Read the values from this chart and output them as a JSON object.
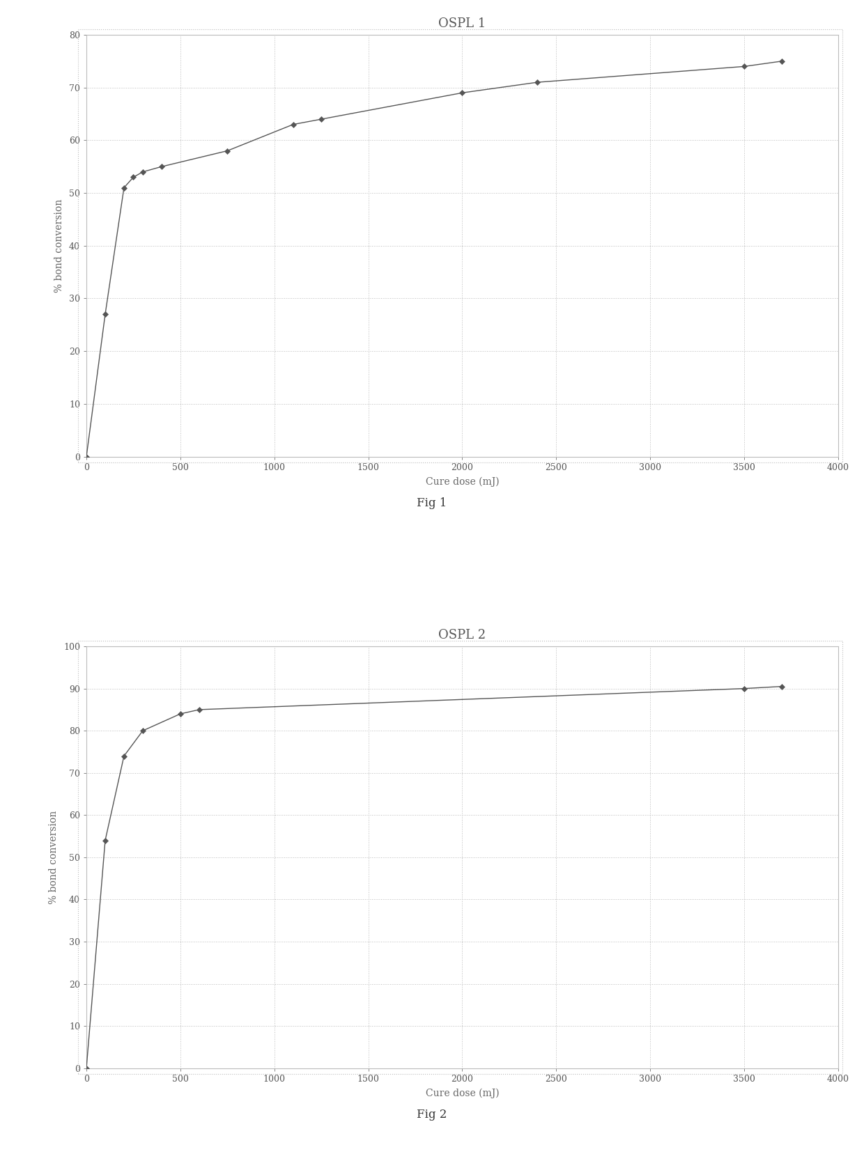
{
  "fig1": {
    "title": "OSPL 1",
    "xlabel": "Cure dose (mJ)",
    "ylabel": "% bond conversion",
    "xlim": [
      0,
      4000
    ],
    "ylim": [
      0,
      80
    ],
    "yticks": [
      0,
      10,
      20,
      30,
      40,
      50,
      60,
      70,
      80
    ],
    "xticks": [
      0,
      500,
      1000,
      1500,
      2000,
      2500,
      3000,
      3500,
      4000
    ],
    "x": [
      0,
      100,
      200,
      250,
      300,
      400,
      750,
      1100,
      1250,
      2000,
      2400,
      3500,
      3700
    ],
    "y": [
      0,
      27,
      51,
      53,
      54,
      55,
      58,
      63,
      64,
      69,
      71,
      74,
      75
    ]
  },
  "fig2": {
    "title": "OSPL 2",
    "xlabel": "Cure dose (mJ)",
    "ylabel": "% bond conversion",
    "xlim": [
      0,
      4000
    ],
    "ylim": [
      0,
      100
    ],
    "yticks": [
      0,
      10,
      20,
      30,
      40,
      50,
      60,
      70,
      80,
      90,
      100
    ],
    "xticks": [
      0,
      500,
      1000,
      1500,
      2000,
      2500,
      3000,
      3500,
      4000
    ],
    "x": [
      0,
      100,
      200,
      300,
      500,
      600,
      3500,
      3700
    ],
    "y": [
      0,
      54,
      74,
      80,
      84,
      85,
      90,
      90.5
    ]
  },
  "fig1_caption": "Fig 1",
  "fig2_caption": "Fig 2",
  "line_color": "#555555",
  "marker": "D",
  "marker_size": 4,
  "line_width": 1.0,
  "grid_color": "#bbbbbb",
  "grid_linestyle": ":",
  "background_color": "#ffffff",
  "title_fontsize": 13,
  "label_fontsize": 10,
  "tick_fontsize": 9,
  "caption_fontsize": 12,
  "outer_border_color": "#bbbbbb"
}
